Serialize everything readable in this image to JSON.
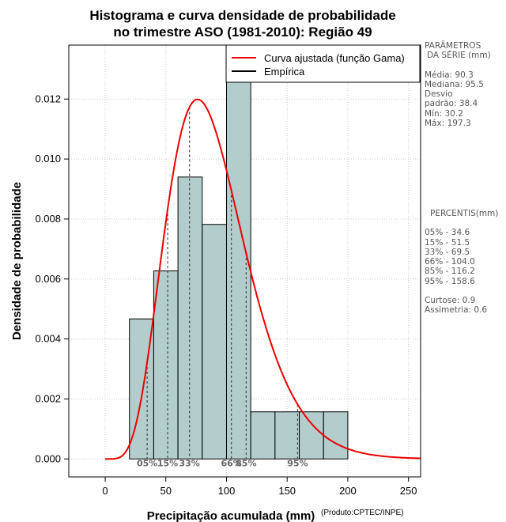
{
  "chart_data": {
    "type": "histogram",
    "title_line1": "Histograma e curva densidade de probabilidade",
    "title_line2": "no trimestre ASO (1981-2010): Região 49",
    "xlabel": "Precipitação acumulada (mm)",
    "ylabel": "Densidade de probabilidade",
    "credit": "(Produto:CPTEC/INPE)",
    "xlim": [
      -30,
      260
    ],
    "ylim": [
      -0.0006,
      0.0138
    ],
    "x_ticks": [
      0,
      50,
      100,
      150,
      200,
      250
    ],
    "x_tick_labels": [
      "0",
      "50",
      "100",
      "150",
      "200",
      "250"
    ],
    "y_ticks": [
      0,
      0.002,
      0.004,
      0.006,
      0.008,
      0.01,
      0.012
    ],
    "y_tick_labels": [
      "0.000",
      "0.002",
      "0.004",
      "0.006",
      "0.008",
      "0.010",
      "0.012"
    ],
    "grid": true,
    "bins": [
      {
        "x0": 20,
        "x1": 40,
        "density": 0.00467
      },
      {
        "x0": 40,
        "x1": 60,
        "density": 0.00627
      },
      {
        "x0": 60,
        "x1": 80,
        "density": 0.0094
      },
      {
        "x0": 80,
        "x1": 100,
        "density": 0.00782
      },
      {
        "x0": 100,
        "x1": 120,
        "density": 0.013
      },
      {
        "x0": 120,
        "x1": 140,
        "density": 0.00157
      },
      {
        "x0": 140,
        "x1": 160,
        "density": 0.00157
      },
      {
        "x0": 160,
        "x1": 180,
        "density": 0.00157
      },
      {
        "x0": 180,
        "x1": 200,
        "density": 0.00157
      }
    ],
    "bar_color": "#b3cccc",
    "gamma_fit": {
      "name": "Curva ajustada (função Gama)",
      "shape": 6.4,
      "scale": 14.1,
      "x_range": [
        0,
        260
      ],
      "color": "#ee0000"
    },
    "empirical": {
      "name": "Empírica",
      "color": "#000000"
    },
    "legend_position": "top-right",
    "percentile_markers": [
      {
        "label": "05%",
        "x": 34.6
      },
      {
        "label": "15%",
        "x": 51.5
      },
      {
        "label": "33%",
        "x": 69.5
      },
      {
        "label": "66%",
        "x": 104.0
      },
      {
        "label": "85%",
        "x": 116.2
      },
      {
        "label": "95%",
        "x": 158.6
      }
    ]
  },
  "side_panel": {
    "params_title_1": "PARÂMETROS",
    "params_title_2": "DA SÉRIE (mm)",
    "media": "Média:  90.3",
    "mediana": "Mediana:  95.5",
    "desvio_1": "Desvio",
    "desvio_2": "padrão:  38.4",
    "min": "Mín:  30.2",
    "max": "Máx:  197.3",
    "percentis_title": "PERCENTIS(mm)",
    "p05": "05% -   34.6",
    "p15": "15% -   51.5",
    "p33": "33% -   69.5",
    "p66": "66% -   104.0",
    "p85": "85% -   116.2",
    "p95": "95% -   158.6",
    "curtose": "Curtose:  0.9",
    "assimetria": "Assimetria:  0.6"
  }
}
